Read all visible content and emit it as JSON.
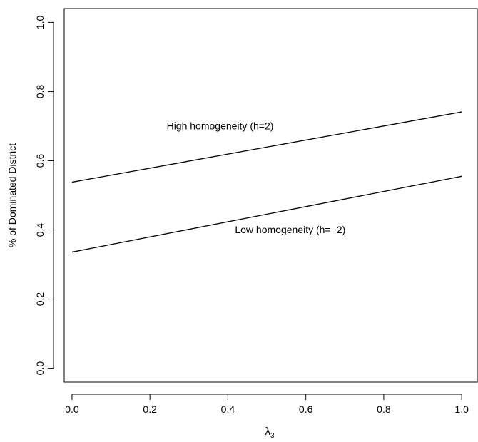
{
  "chart_data": {
    "type": "line",
    "title": "",
    "xlabel": "λ",
    "xlabel_sub": "3",
    "ylabel": "% of Dominated District",
    "xlim": [
      -0.02,
      1.04
    ],
    "ylim": [
      -0.04,
      1.04
    ],
    "x_ticks": [
      "0.0",
      "0.2",
      "0.4",
      "0.6",
      "0.8",
      "1.0"
    ],
    "x_tick_values": [
      0,
      0.2,
      0.4,
      0.6,
      0.8,
      1.0
    ],
    "y_ticks": [
      "0.0",
      "0.2",
      "0.4",
      "0.6",
      "0.8",
      "1.0"
    ],
    "y_tick_values": [
      0,
      0.2,
      0.4,
      0.6,
      0.8,
      1.0
    ],
    "grid": false,
    "series": [
      {
        "name": "High homogeneity (h=2)",
        "x": [
          0,
          1
        ],
        "y": [
          0.538,
          0.741
        ],
        "label_at": [
          0.38,
          0.698
        ]
      },
      {
        "name": "Low homogeneity (h=−2)",
        "x": [
          0,
          1
        ],
        "y": [
          0.336,
          0.555
        ],
        "label_at": [
          0.56,
          0.398
        ]
      }
    ]
  }
}
